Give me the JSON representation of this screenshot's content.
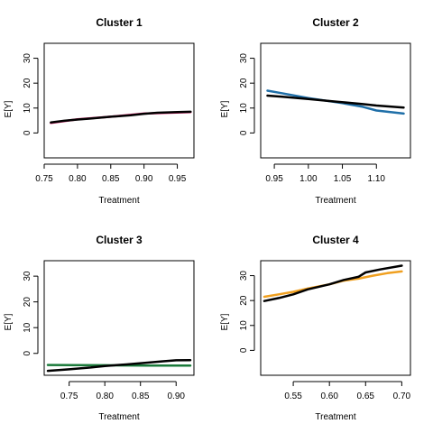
{
  "chart_data": [
    {
      "type": "line",
      "title": "Cluster 1",
      "xlabel": "Treatment",
      "ylabel": "E[Y]",
      "xlim": [
        0.75,
        0.975
      ],
      "ylim": [
        -10,
        36
      ],
      "xticks": [
        0.75,
        0.8,
        0.85,
        0.9,
        0.95
      ],
      "xtick_labels": [
        "0.75",
        "0.80",
        "0.85",
        "0.90",
        "0.95"
      ],
      "yticks": [
        0,
        10,
        20,
        30
      ],
      "ytick_labels": [
        "0",
        "10",
        "20",
        "30"
      ],
      "series": [
        {
          "color": "#e8196b",
          "x": [
            0.76,
            0.8,
            0.85,
            0.9,
            0.97
          ],
          "y": [
            4.0,
            5.5,
            6.5,
            7.8,
            8.4
          ]
        },
        {
          "color": "#000000",
          "x": [
            0.76,
            0.78,
            0.8,
            0.82,
            0.85,
            0.88,
            0.9,
            0.92,
            0.95,
            0.97
          ],
          "y": [
            4.2,
            4.9,
            5.4,
            5.8,
            6.5,
            7.1,
            7.7,
            8.1,
            8.4,
            8.5
          ]
        }
      ]
    },
    {
      "type": "line",
      "title": "Cluster 2",
      "xlabel": "Treatment",
      "ylabel": "E[Y]",
      "xlim": [
        0.93,
        1.15
      ],
      "ylim": [
        -10,
        36
      ],
      "xticks": [
        0.95,
        1.0,
        1.05,
        1.1
      ],
      "xtick_labels": [
        "0.95",
        "1.00",
        "1.05",
        "1.10"
      ],
      "yticks": [
        0,
        10,
        20,
        30
      ],
      "ytick_labels": [
        "0",
        "10",
        "20",
        "30"
      ],
      "series": [
        {
          "color": "#1f6fa8",
          "x": [
            0.94,
            0.96,
            1.0,
            1.05,
            1.08,
            1.1,
            1.14
          ],
          "y": [
            17.0,
            16.0,
            14.0,
            12.0,
            10.5,
            9.0,
            7.8
          ]
        },
        {
          "color": "#000000",
          "x": [
            0.94,
            0.96,
            1.0,
            1.04,
            1.08,
            1.1,
            1.14
          ],
          "y": [
            15.0,
            14.6,
            13.6,
            12.6,
            11.6,
            11.0,
            10.2
          ]
        }
      ]
    },
    {
      "type": "line",
      "title": "Cluster 3",
      "xlabel": "Treatment",
      "ylabel": "E[Y]",
      "xlim": [
        0.715,
        0.925
      ],
      "ylim": [
        -8.5,
        36
      ],
      "xticks": [
        0.75,
        0.8,
        0.85,
        0.9
      ],
      "xtick_labels": [
        "0.75",
        "0.80",
        "0.85",
        "0.90"
      ],
      "yticks": [
        0,
        10,
        20,
        30
      ],
      "ytick_labels": [
        "0",
        "10",
        "20",
        "30"
      ],
      "series": [
        {
          "color": "#1a7a3a",
          "x": [
            0.72,
            0.8,
            0.86,
            0.92
          ],
          "y": [
            -4.5,
            -4.6,
            -4.7,
            -4.7
          ]
        },
        {
          "color": "#000000",
          "x": [
            0.72,
            0.75,
            0.78,
            0.8,
            0.83,
            0.86,
            0.88,
            0.9,
            0.92
          ],
          "y": [
            -6.8,
            -6.2,
            -5.5,
            -4.9,
            -4.3,
            -3.6,
            -3.1,
            -2.7,
            -2.6
          ]
        }
      ]
    },
    {
      "type": "line",
      "title": "Cluster 4",
      "xlabel": "Treatment",
      "ylabel": "E[Y]",
      "xlim": [
        0.505,
        0.712
      ],
      "ylim": [
        -10,
        36
      ],
      "xticks": [
        0.55,
        0.6,
        0.65,
        0.7
      ],
      "xtick_labels": [
        "0.55",
        "0.60",
        "0.65",
        "0.70"
      ],
      "yticks": [
        0,
        10,
        20,
        30
      ],
      "ytick_labels": [
        "0",
        "10",
        "20",
        "30"
      ],
      "series": [
        {
          "color": "#f0a020",
          "x": [
            0.51,
            0.53,
            0.55,
            0.57,
            0.6,
            0.62,
            0.64,
            0.66,
            0.68,
            0.7
          ],
          "y": [
            21.5,
            22.5,
            23.5,
            24.8,
            26.5,
            28.0,
            28.8,
            30.0,
            31.0,
            31.7
          ]
        },
        {
          "color": "#000000",
          "x": [
            0.51,
            0.53,
            0.55,
            0.57,
            0.6,
            0.62,
            0.64,
            0.65,
            0.67,
            0.7
          ],
          "y": [
            19.8,
            21.0,
            22.5,
            24.5,
            26.5,
            28.3,
            29.5,
            31.3,
            32.5,
            34.0
          ]
        }
      ]
    }
  ]
}
